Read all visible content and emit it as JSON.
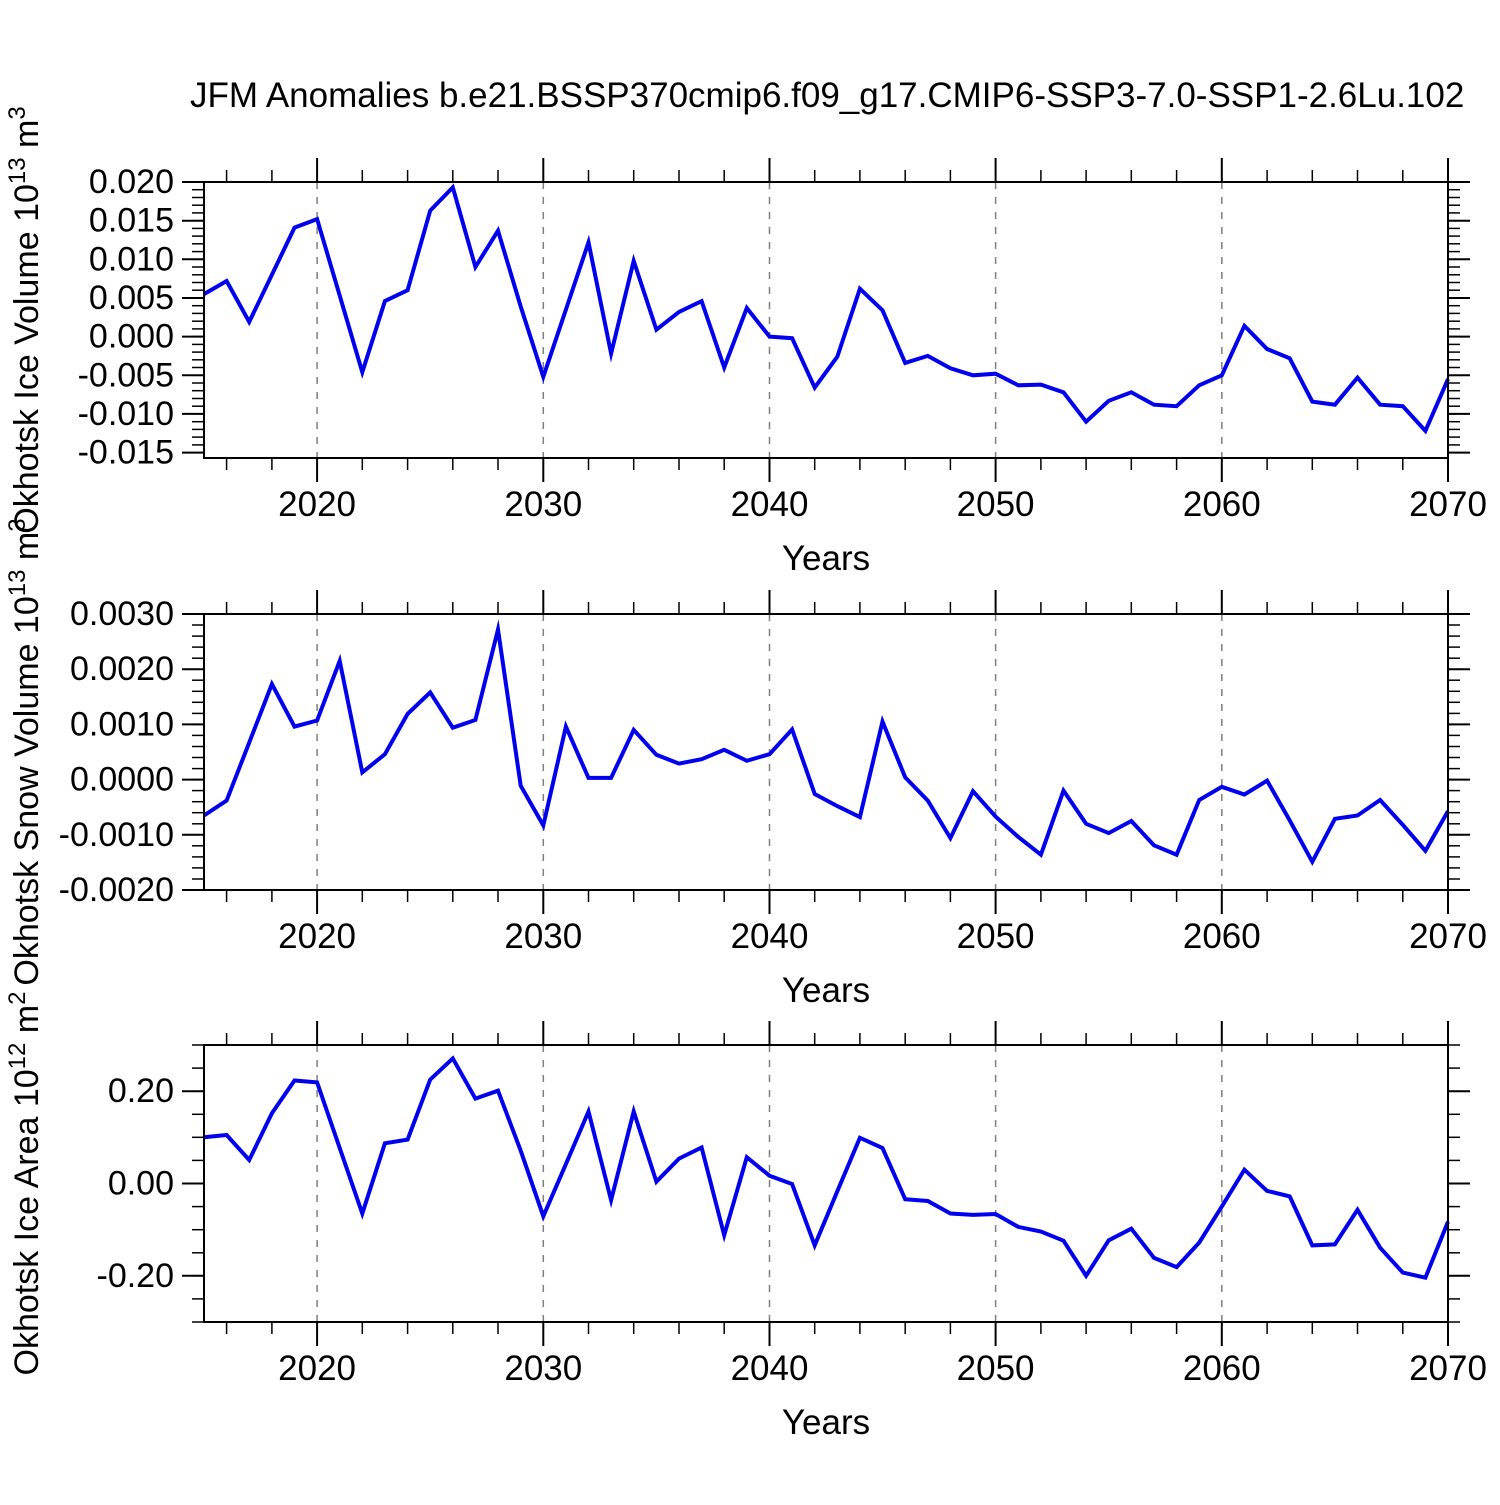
{
  "title": "JFM Anomalies b.e21.BSSP370cmip6.f09_g17.CMIP6-SSP3-7.0-SSP1-2.6Lu.102",
  "xlabel": "Years",
  "colors": {
    "line": "#0000ee",
    "frame": "#000000",
    "grid": "#7f7f7f",
    "text": "#000000"
  },
  "years": [
    2015,
    2016,
    2017,
    2018,
    2019,
    2020,
    2021,
    2022,
    2023,
    2024,
    2025,
    2026,
    2027,
    2028,
    2029,
    2030,
    2031,
    2032,
    2033,
    2034,
    2035,
    2036,
    2037,
    2038,
    2039,
    2040,
    2041,
    2042,
    2043,
    2044,
    2045,
    2046,
    2047,
    2048,
    2049,
    2050,
    2051,
    2052,
    2053,
    2054,
    2055,
    2056,
    2057,
    2058,
    2059,
    2060,
    2061,
    2062,
    2063,
    2064,
    2065,
    2066,
    2067,
    2068,
    2069,
    2070
  ],
  "chart_data": [
    {
      "type": "line",
      "name": "okhotsk-ice-volume",
      "ylabel": "Okhotsk Ice Volume 10¹³ m³",
      "ylabel_parts": [
        [
          "t",
          "Okhotsk Ice Volume 10"
        ],
        [
          "s",
          "13"
        ],
        [
          "t",
          " m"
        ],
        [
          "s",
          "3"
        ]
      ],
      "xlabel": "Years",
      "legend": "none",
      "grid": "vertical-dashed",
      "xlim": [
        2015,
        2070
      ],
      "ylim": [
        -0.0157,
        0.02
      ],
      "ytick_values": [
        0.02,
        0.015,
        0.01,
        0.005,
        0.0,
        -0.005,
        -0.01,
        -0.015
      ],
      "ytick_labels": [
        "0.020",
        "0.015",
        "0.010",
        "0.005",
        "0.000",
        "-0.005",
        "-0.010",
        "-0.015"
      ],
      "yminor_step": 0.001,
      "xtick_values": [
        2020,
        2030,
        2040,
        2050,
        2060,
        2070
      ],
      "xtick_labels": [
        "2020",
        "2030",
        "2040",
        "2050",
        "2060",
        "2070"
      ],
      "xminor_step": 2,
      "grid_years": [
        2020,
        2030,
        2040,
        2050,
        2060
      ],
      "values": [
        0.0055,
        0.0072,
        0.0019,
        0.008,
        0.0141,
        0.0152,
        0.0053,
        -0.0046,
        0.0046,
        0.006,
        0.0163,
        0.0193,
        0.009,
        0.0137,
        0.0039,
        -0.0052,
        0.0035,
        0.0122,
        -0.0022,
        0.0098,
        0.0009,
        0.0032,
        0.0046,
        -0.004,
        0.0037,
        0.0,
        -0.0002,
        -0.0066,
        -0.0026,
        0.0062,
        0.0034,
        -0.0034,
        -0.0025,
        -0.0041,
        -0.005,
        -0.0048,
        -0.0063,
        -0.0062,
        -0.0072,
        -0.011,
        -0.0083,
        -0.0072,
        -0.0088,
        -0.009,
        -0.0063,
        -0.005,
        0.0014,
        -0.0016,
        -0.0028,
        -0.0084,
        -0.0088,
        -0.0053,
        -0.0088,
        -0.009,
        -0.0122,
        -0.0055
      ]
    },
    {
      "type": "line",
      "name": "okhotsk-snow-volume",
      "ylabel": "Okhotsk Snow Volume 10¹³ m³",
      "ylabel_parts": [
        [
          "t",
          "Okhotsk Snow Volume 10"
        ],
        [
          "s",
          "13"
        ],
        [
          "t",
          " m"
        ],
        [
          "s",
          "3"
        ]
      ],
      "xlabel": "Years",
      "legend": "none",
      "grid": "vertical-dashed",
      "xlim": [
        2015,
        2070
      ],
      "ylim": [
        -0.002,
        0.003
      ],
      "ytick_values": [
        0.003,
        0.002,
        0.001,
        0.0,
        -0.001,
        -0.002
      ],
      "ytick_labels": [
        "0.0030",
        "0.0020",
        "0.0010",
        "0.0000",
        "-0.0010",
        "-0.0020"
      ],
      "yminor_step": 0.0002,
      "xtick_values": [
        2020,
        2030,
        2040,
        2050,
        2060,
        2070
      ],
      "xtick_labels": [
        "2020",
        "2030",
        "2040",
        "2050",
        "2060",
        "2070"
      ],
      "xminor_step": 2,
      "grid_years": [
        2020,
        2030,
        2040,
        2050,
        2060
      ],
      "values": [
        -0.00065,
        -0.00038,
        0.00067,
        0.00173,
        0.00096,
        0.00107,
        0.00215,
        0.00013,
        0.00046,
        0.00119,
        0.00158,
        0.00094,
        0.00108,
        0.00272,
        -0.00011,
        -0.00083,
        0.00096,
        3e-05,
        3e-05,
        0.0009,
        0.00045,
        0.00029,
        0.00037,
        0.00054,
        0.00034,
        0.00046,
        0.00091,
        -0.00026,
        -0.00048,
        -0.00068,
        0.00105,
        4e-05,
        -0.00038,
        -0.00106,
        -0.00021,
        -0.00067,
        -0.00104,
        -0.00136,
        -0.0002,
        -0.0008,
        -0.00097,
        -0.00075,
        -0.00119,
        -0.00136,
        -0.00037,
        -0.00013,
        -0.00027,
        -2e-05,
        -0.00074,
        -0.00149,
        -0.00071,
        -0.00065,
        -0.00037,
        -0.00082,
        -0.00129,
        -0.00057
      ]
    },
    {
      "type": "line",
      "name": "okhotsk-ice-area",
      "ylabel": "Okhotsk Ice Area 10¹² m²",
      "ylabel_parts": [
        [
          "t",
          "Okhotsk Ice Area 10"
        ],
        [
          "s",
          "12"
        ],
        [
          "t",
          " m"
        ],
        [
          "s",
          "2"
        ]
      ],
      "xlabel": "Years",
      "legend": "none",
      "grid": "vertical-dashed",
      "xlim": [
        2015,
        2070
      ],
      "ylim": [
        -0.3,
        0.3
      ],
      "ytick_values": [
        0.2,
        0.0,
        -0.2
      ],
      "ytick_labels": [
        "0.20",
        "0.00",
        "-0.20"
      ],
      "yminor_step": 0.05,
      "xtick_values": [
        2020,
        2030,
        2040,
        2050,
        2060,
        2070
      ],
      "xtick_labels": [
        "2020",
        "2030",
        "2040",
        "2050",
        "2060",
        "2070"
      ],
      "xminor_step": 2,
      "grid_years": [
        2020,
        2030,
        2040,
        2050,
        2060
      ],
      "values": [
        0.1,
        0.105,
        0.051,
        0.152,
        0.223,
        0.219,
        0.077,
        -0.065,
        0.087,
        0.095,
        0.225,
        0.271,
        0.184,
        0.201,
        0.071,
        -0.071,
        0.042,
        0.156,
        -0.036,
        0.156,
        0.004,
        0.054,
        0.078,
        -0.112,
        0.057,
        0.017,
        -0.001,
        -0.134,
        -0.017,
        0.099,
        0.077,
        -0.034,
        -0.038,
        -0.065,
        -0.068,
        -0.066,
        -0.094,
        -0.104,
        -0.124,
        -0.2,
        -0.123,
        -0.098,
        -0.161,
        -0.181,
        -0.128,
        -0.05,
        0.03,
        -0.016,
        -0.028,
        -0.134,
        -0.132,
        -0.057,
        -0.139,
        -0.193,
        -0.204,
        -0.083
      ]
    }
  ]
}
